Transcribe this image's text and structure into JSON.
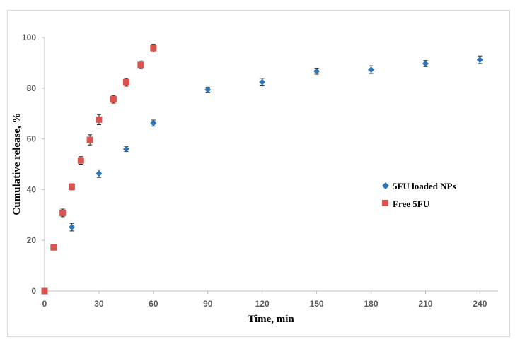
{
  "chart_data": {
    "type": "scatter",
    "title": "",
    "xlabel": "Time, min",
    "ylabel": "Cumulative release, %",
    "xlim": [
      0,
      250
    ],
    "ylim": [
      0,
      100
    ],
    "x_ticks": [
      0,
      30,
      60,
      90,
      120,
      150,
      180,
      210,
      240
    ],
    "y_ticks": [
      0,
      20,
      40,
      60,
      80,
      100
    ],
    "grid": false,
    "legend_position": "right",
    "series": [
      {
        "name": "5FU loaded NPs",
        "marker": "diamond",
        "color": "#2E75B6",
        "x": [
          0,
          15,
          30,
          45,
          60,
          90,
          120,
          150,
          180,
          210,
          240
        ],
        "y": [
          0,
          25.2,
          46.3,
          56.0,
          66.2,
          79.4,
          82.4,
          86.7,
          87.3,
          89.7,
          91.2
        ],
        "error": [
          0,
          1.5,
          1.5,
          1.0,
          1.2,
          1.0,
          1.5,
          1.2,
          1.5,
          1.2,
          1.5
        ]
      },
      {
        "name": "Free 5FU",
        "marker": "square",
        "color": "#D9534F",
        "x": [
          0,
          5,
          10,
          15,
          20,
          25,
          30,
          38,
          45,
          53,
          60
        ],
        "y": [
          0,
          17.2,
          30.8,
          41.1,
          51.5,
          59.6,
          67.6,
          75.6,
          82.3,
          89.2,
          95.8
        ],
        "error": [
          0,
          1.0,
          1.5,
          1.2,
          1.5,
          2.0,
          2.0,
          1.5,
          1.5,
          1.5,
          1.5
        ]
      }
    ]
  }
}
